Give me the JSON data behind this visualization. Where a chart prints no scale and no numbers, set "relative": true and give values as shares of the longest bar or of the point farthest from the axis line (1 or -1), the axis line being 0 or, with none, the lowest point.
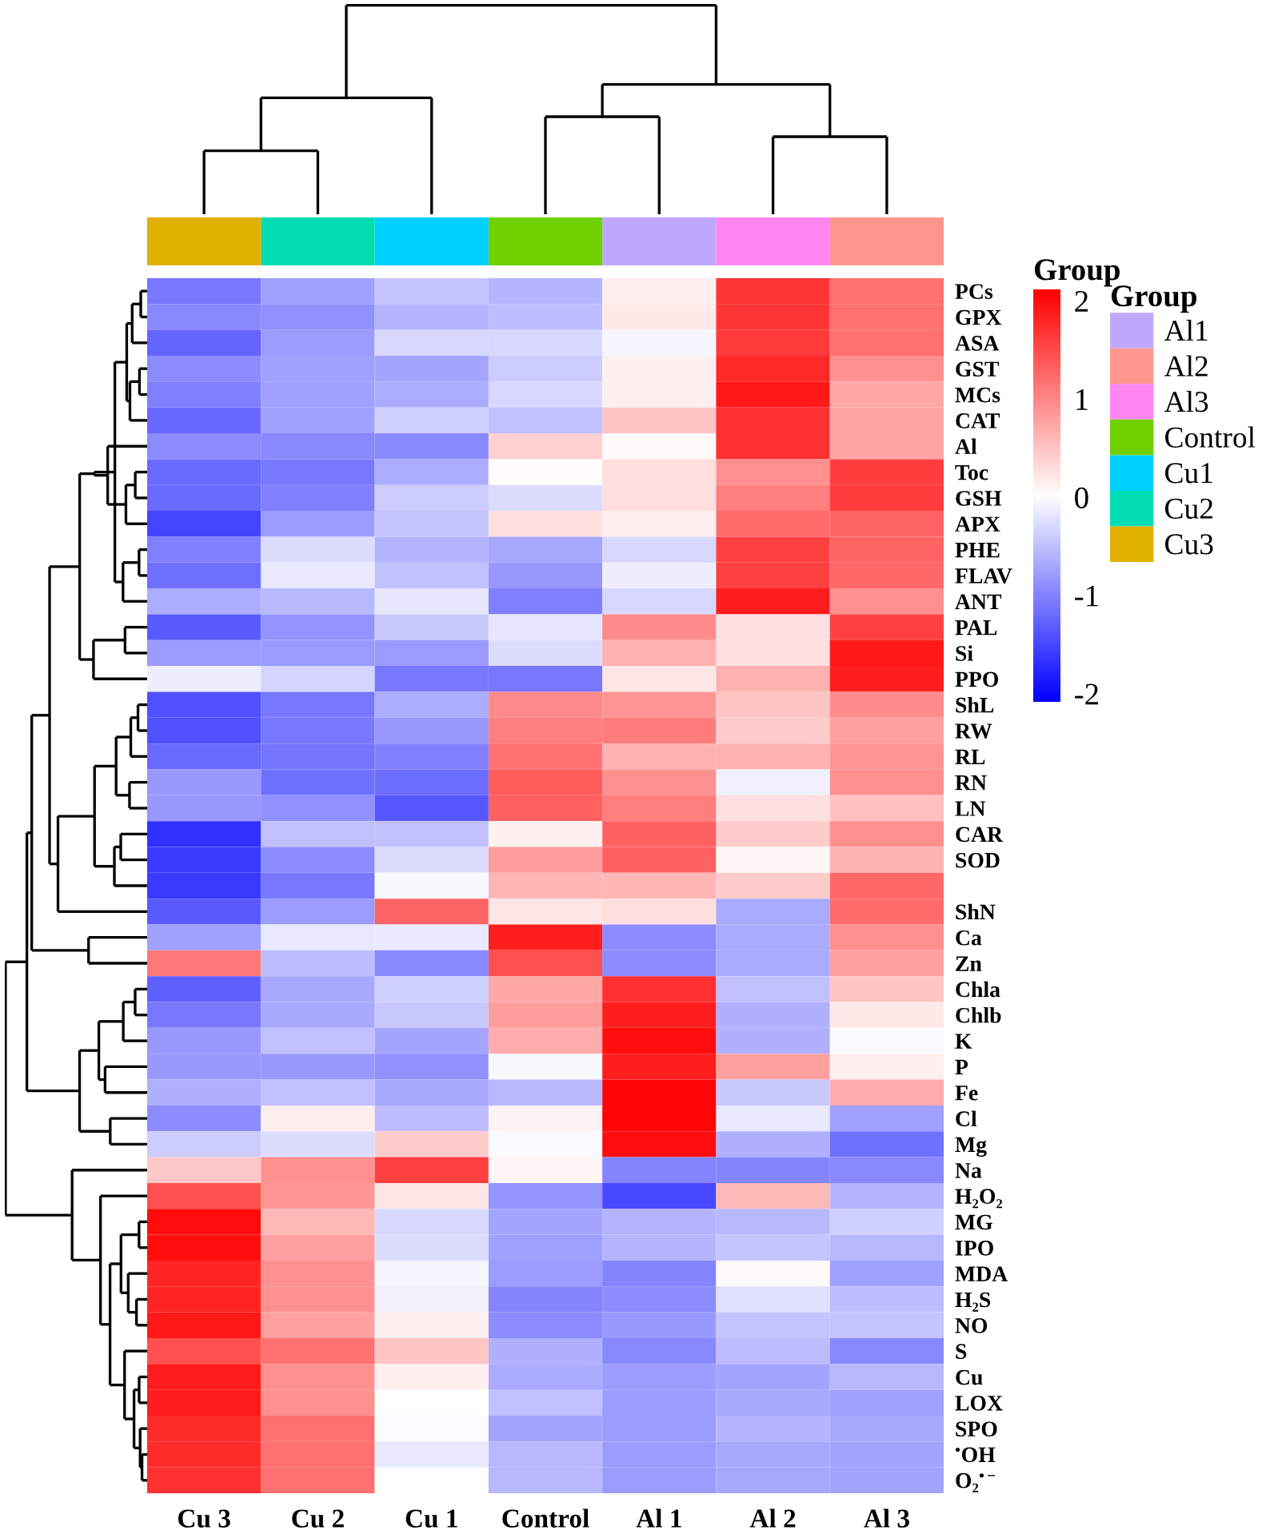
{
  "chart_data": [
    {
      "type": "bar",
      "relative": true,
      "stacked": true,
      "categories": [
        null,
        null,
        null,
        null,
        null,
        null,
        null
      ],
      "legend": "right",
      "legend_title": "Group",
      "series": [
        {
          "name": "Al1",
          "color": "#c0a8ff",
          "values": [
            null,
            null,
            null,
            null,
            1,
            null,
            null
          ]
        },
        {
          "name": "Al2",
          "color": "#ff968c",
          "values": [
            null,
            null,
            null,
            null,
            null,
            null,
            1
          ]
        },
        {
          "name": "Al3",
          "color": "#ff86f0",
          "values": [
            null,
            null,
            null,
            null,
            null,
            1,
            null
          ]
        },
        {
          "name": "Control",
          "color": "#70d000",
          "values": [
            null,
            null,
            null,
            1,
            null,
            null,
            null
          ]
        },
        {
          "name": "Cu1",
          "color": "#00d0ff",
          "values": [
            null,
            null,
            1,
            null,
            null,
            null,
            null
          ]
        },
        {
          "name": "Cu2",
          "color": "#00dcb4",
          "values": [
            null,
            1,
            null,
            null,
            null,
            null,
            null
          ]
        },
        {
          "name": "Cu3",
          "color": "#e0b000",
          "values": [
            1,
            null,
            null,
            null,
            null,
            null,
            null
          ]
        }
      ]
    },
    {
      "type": "heatmap",
      "categories": [
        "Cu 3",
        "Cu 2",
        "Cu 1",
        "Control",
        "Al 1",
        "Al 2",
        "Al 3"
      ],
      "y_categories": [
        "PCs",
        "GPX",
        "ASA",
        "GST",
        "MCs",
        "CAT",
        "Al",
        "Toc",
        "GSH",
        "APX",
        "PHE",
        "FLAV",
        "ANT",
        "PAL",
        "Si",
        "PPO",
        "ShL",
        "RW",
        "RL",
        "RN",
        "LN",
        "CAR",
        "SOD",
        null,
        "ShN",
        "Ca",
        "Zn",
        "Chla",
        "Chlb",
        "K",
        "P",
        "Fe",
        "Cl",
        "Mg",
        "Na",
        "H₂O₂",
        "MG",
        "IPO",
        "MDA",
        "H₂S",
        "NO",
        "S",
        "Cu",
        "LOX",
        "SPO",
        "$^{•}$OH",
        "O₂$^{•−}$"
      ],
      "clim": [
        -2.1,
        2.1
      ],
      "cticks": [
        -2,
        -1,
        0,
        1,
        2
      ],
      "clabel": "Group",
      "cells": [
        [
          -1.1,
          -0.78,
          -0.49,
          -0.62,
          0.14,
          1.66,
          1.18
        ],
        [
          -0.98,
          -0.91,
          -0.62,
          -0.55,
          0.17,
          1.66,
          1.18
        ],
        [
          -1.27,
          -0.81,
          -0.32,
          -0.32,
          -0.07,
          1.62,
          1.18
        ],
        [
          -0.95,
          -0.78,
          -0.75,
          -0.42,
          0.12,
          1.77,
          0.91
        ],
        [
          -1.05,
          -0.78,
          -0.68,
          -0.32,
          0.12,
          1.9,
          0.72
        ],
        [
          -1.24,
          -0.78,
          -0.39,
          -0.52,
          0.49,
          1.7,
          0.75
        ],
        [
          -0.95,
          -0.98,
          -0.98,
          0.39,
          0.04,
          1.7,
          0.75
        ],
        [
          -1.23,
          -1.11,
          -0.68,
          0.02,
          0.27,
          0.91,
          1.6
        ],
        [
          -1.23,
          -1.05,
          -0.42,
          -0.29,
          0.27,
          1.05,
          1.6
        ],
        [
          -1.53,
          -0.81,
          -0.49,
          0.25,
          0.14,
          1.21,
          1.27
        ],
        [
          -1.05,
          -0.29,
          -0.62,
          -0.72,
          -0.32,
          1.57,
          1.27
        ],
        [
          -1.18,
          -0.19,
          -0.52,
          -0.85,
          -0.14,
          1.57,
          1.24
        ],
        [
          -0.68,
          -0.58,
          -0.21,
          -1.05,
          -0.32,
          1.87,
          0.91
        ],
        [
          -1.36,
          -0.88,
          -0.45,
          -0.21,
          0.96,
          0.25,
          1.57
        ],
        [
          -0.83,
          -0.83,
          -0.83,
          -0.29,
          0.64,
          0.27,
          1.9
        ],
        [
          -0.14,
          -0.35,
          -1.11,
          -1.11,
          0.21,
          0.64,
          1.84
        ],
        [
          -1.44,
          -1.11,
          -0.68,
          0.96,
          0.88,
          0.49,
          0.95
        ],
        [
          -1.44,
          -1.11,
          -0.85,
          1.05,
          1.08,
          0.42,
          0.78
        ],
        [
          -1.23,
          -1.14,
          -1.05,
          1.18,
          0.64,
          0.64,
          0.88
        ],
        [
          -0.85,
          -1.18,
          -1.21,
          1.34,
          0.91,
          -0.12,
          0.91
        ],
        [
          -0.85,
          -0.91,
          -1.38,
          1.31,
          1.05,
          0.25,
          0.52
        ],
        [
          -1.7,
          -0.52,
          -0.52,
          0.12,
          1.31,
          0.42,
          0.91
        ],
        [
          -1.62,
          -0.95,
          -0.29,
          0.81,
          1.31,
          0.07,
          0.63
        ],
        [
          -1.62,
          -1.11,
          -0.05,
          0.6,
          0.6,
          0.42,
          1.24
        ],
        [
          -1.36,
          -0.81,
          1.27,
          0.21,
          0.27,
          -0.7,
          1.22
        ],
        [
          -0.78,
          -0.19,
          -0.17,
          1.84,
          -0.95,
          -0.7,
          0.91
        ],
        [
          1.11,
          -0.55,
          -0.98,
          1.44,
          -0.95,
          -0.7,
          0.78
        ],
        [
          -1.31,
          -0.72,
          -0.39,
          0.72,
          1.7,
          -0.52,
          0.49
        ],
        [
          -1.11,
          -0.72,
          -0.45,
          0.81,
          1.84,
          -0.65,
          0.17
        ],
        [
          -0.85,
          -0.52,
          -0.75,
          0.68,
          1.97,
          -0.65,
          -0.04
        ],
        [
          -0.85,
          -0.85,
          -0.91,
          -0.05,
          1.84,
          0.78,
          0.12
        ],
        [
          -0.65,
          -0.52,
          -0.72,
          -0.58,
          2.05,
          -0.45,
          0.68
        ],
        [
          -0.95,
          0.14,
          -0.55,
          0.1,
          2.05,
          -0.19,
          -0.78
        ],
        [
          -0.42,
          -0.29,
          0.42,
          -0.04,
          2.0,
          -0.65,
          -1.18
        ],
        [
          0.45,
          0.91,
          1.57,
          0.07,
          -1.01,
          -1.01,
          -0.98
        ],
        [
          1.44,
          0.88,
          0.21,
          -0.88,
          -1.5,
          0.58,
          -0.62
        ],
        [
          2.0,
          0.58,
          -0.32,
          -0.75,
          -0.62,
          -0.58,
          -0.39
        ],
        [
          1.97,
          0.78,
          -0.29,
          -0.78,
          -0.62,
          -0.49,
          -0.58
        ],
        [
          1.8,
          0.91,
          -0.07,
          -0.81,
          -1.01,
          0.04,
          -0.78
        ],
        [
          1.8,
          0.91,
          -0.1,
          -1.01,
          -0.95,
          -0.25,
          -0.55
        ],
        [
          1.9,
          0.78,
          0.12,
          -0.95,
          -0.85,
          -0.49,
          -0.49
        ],
        [
          1.44,
          1.18,
          0.49,
          -0.65,
          -0.98,
          -0.55,
          -0.98
        ],
        [
          1.87,
          0.91,
          0.12,
          -0.7,
          -0.81,
          -0.75,
          -0.58
        ],
        [
          1.87,
          0.91,
          0.01,
          -0.52,
          -0.81,
          -0.72,
          -0.78
        ],
        [
          1.75,
          1.18,
          -0.03,
          -0.75,
          -0.81,
          -0.62,
          -0.72
        ],
        [
          1.75,
          1.18,
          -0.19,
          -0.58,
          -0.81,
          -0.72,
          -0.75
        ],
        [
          1.7,
          1.18,
          -0.01,
          -0.58,
          -0.81,
          -0.72,
          -0.75
        ]
      ]
    }
  ]
}
